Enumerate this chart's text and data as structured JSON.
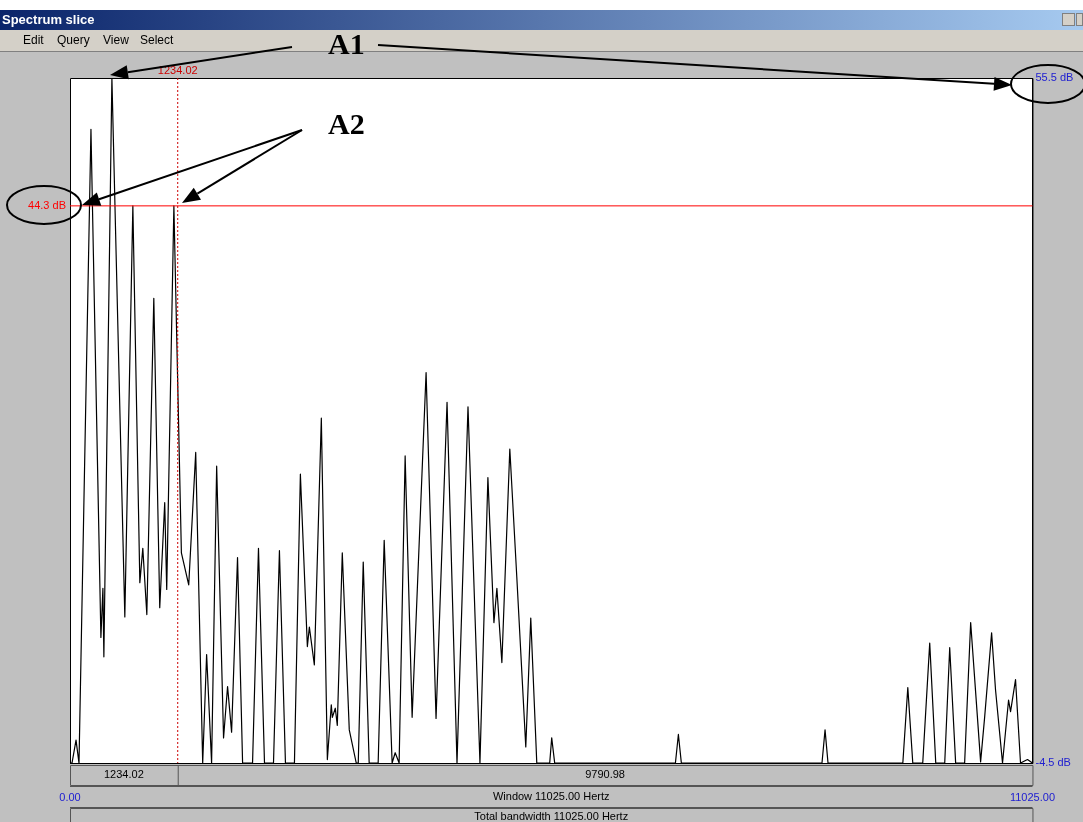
{
  "chart_data": {
    "type": "line",
    "title": "Spectrum slice",
    "x": [
      0,
      23,
      69,
      103,
      240,
      354,
      377,
      388,
      480,
      628,
      720,
      800,
      834,
      880,
      960,
      1028,
      1085,
      1108,
      1190,
      1276,
      1360,
      1440,
      1520,
      1565,
      1622,
      1680,
      1759,
      1805,
      1851,
      1919,
      1977,
      2091,
      2159,
      2228,
      2331,
      2399,
      2468,
      2571,
      2639,
      2719,
      2742,
      2799,
      2879,
      2948,
      2993,
      3005,
      3039,
      3062,
      3119,
      3199,
      3279,
      3302,
      3359,
      3427,
      3530,
      3599,
      3690,
      3725,
      3770,
      3839,
      3919,
      4079,
      4193,
      4319,
      4433,
      4559,
      4696,
      4787,
      4856,
      4890,
      4947,
      5038,
      5118,
      5221,
      5278,
      5347,
      5495,
      5518,
      5552,
      6935,
      6969,
      7003,
      8614,
      8649,
      8683,
      9540,
      9597,
      9654,
      9768,
      9848,
      9917,
      10020,
      10077,
      10145,
      10248,
      10317,
      10431,
      10477,
      10557,
      10602,
      10682,
      10751,
      10774,
      10831,
      10888,
      10968,
      11025
    ],
    "values": [
      -4.5,
      -4.5,
      -2.5,
      -4.5,
      51.0,
      6.5,
      10.8,
      4.8,
      55.5,
      8.3,
      44.3,
      11.3,
      14.3,
      8.5,
      36.2,
      9.1,
      18.3,
      10.7,
      44.3,
      13.9,
      11.1,
      22.7,
      -4.5,
      5.0,
      -4.5,
      21.5,
      -2.3,
      2.2,
      -1.8,
      13.5,
      -4.5,
      -4.5,
      14.3,
      -4.5,
      -4.5,
      14.1,
      -4.5,
      -4.5,
      20.8,
      5.7,
      7.4,
      4.1,
      25.7,
      -4.2,
      0.6,
      -0.5,
      0.3,
      -1.2,
      13.9,
      -1.6,
      -4.5,
      -4.5,
      13.1,
      -4.5,
      -4.5,
      15.0,
      -4.5,
      -3.6,
      -4.5,
      22.4,
      -0.5,
      29.7,
      -0.6,
      27.1,
      -4.5,
      26.7,
      -4.5,
      20.5,
      7.8,
      10.8,
      4.3,
      23.0,
      11.8,
      -3.1,
      8.2,
      -4.5,
      -4.5,
      -2.3,
      -4.5,
      -4.5,
      -2.0,
      -4.5,
      -4.5,
      -1.6,
      -4.5,
      -4.5,
      2.1,
      -4.5,
      -4.5,
      6.0,
      -4.5,
      -4.5,
      5.6,
      -4.5,
      -4.5,
      7.8,
      -4.4,
      -0.5,
      6.9,
      1.9,
      -4.5,
      1.0,
      0.0,
      2.8,
      -4.5,
      -4.2,
      -4.5
    ],
    "color": "#000000",
    "xlim": [
      0,
      11025
    ],
    "xticks": [
      {
        "value": 0,
        "label": "0.00"
      },
      {
        "value": 11025,
        "label": "11025.00"
      }
    ],
    "ylim": [
      -4.5,
      55.5
    ],
    "yticks": [
      {
        "value": 55.5,
        "label": "55.5 dB"
      },
      {
        "value": -4.5,
        "label": "-4.5 dB"
      }
    ],
    "ref_lines": [
      {
        "axis": "y",
        "value": 44.3,
        "label": "44.3 dB",
        "color": "#ff0000",
        "line_style": "solid"
      },
      {
        "axis": "x",
        "value": 1234.02,
        "label": "1234.02",
        "color": "#cc0000",
        "line_style": "dotted"
      }
    ],
    "annotations": [
      "A1",
      "A2",
      "1234.02",
      "9790.98",
      "Window 11025.00 Hertz",
      "Total bandwidth 11025.00 Hertz",
      "Edit",
      "Query",
      "View",
      "Select"
    ],
    "grid": false,
    "legend": false
  }
}
